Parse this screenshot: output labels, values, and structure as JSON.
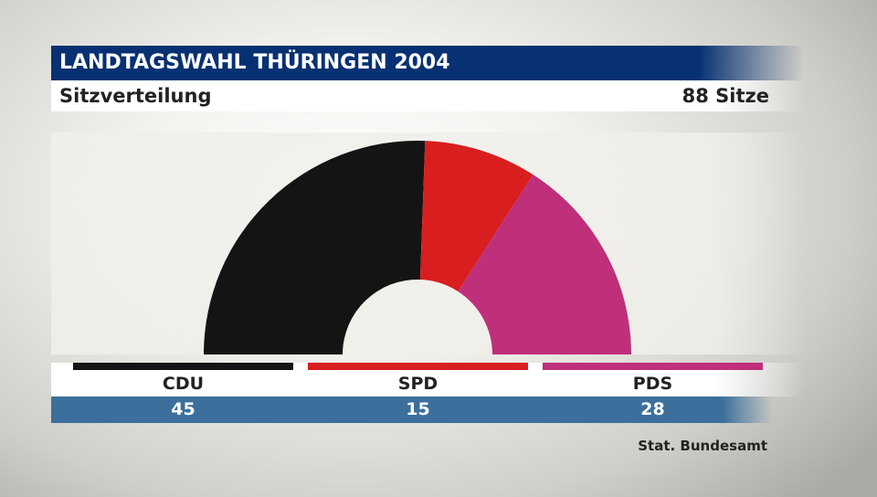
{
  "header": {
    "title": "LANDTAGSWAHL THÜRINGEN 2004",
    "subtitle": "Sitzverteilung",
    "total_label": "88 Sitze"
  },
  "chart_data": {
    "type": "hemicycle",
    "total_seats": 88,
    "parties": [
      {
        "name": "CDU",
        "seats": 45,
        "color": "#141414"
      },
      {
        "name": "SPD",
        "seats": 15,
        "color": "#d81e1e"
      },
      {
        "name": "PDS",
        "seats": 28,
        "color": "#bf2f7a"
      }
    ],
    "seat_labels": [
      "45",
      "15",
      "28"
    ]
  },
  "footer": {
    "source": "Stat. Bundesamt"
  }
}
